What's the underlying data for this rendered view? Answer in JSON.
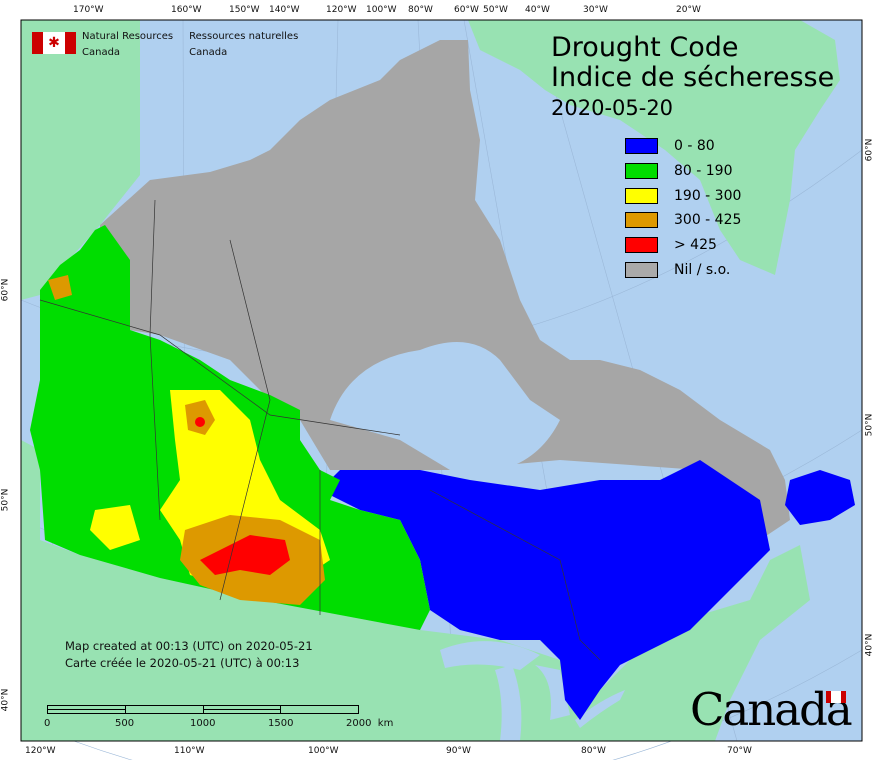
{
  "header": {
    "org_en_line1": "Natural Resources",
    "org_en_line2": "Canada",
    "org_fr_line1": "Ressources naturelles",
    "org_fr_line2": "Canada"
  },
  "title": {
    "line1": "Drought Code",
    "line2": "Indice de sécheresse",
    "date": "2020-05-20"
  },
  "legend": [
    {
      "label": "0 - 80",
      "color": "#0000ff"
    },
    {
      "label": "80 - 190",
      "color": "#00dd00"
    },
    {
      "label": "190 - 300",
      "color": "#ffff00"
    },
    {
      "label": "300 - 425",
      "color": "#dd9900"
    },
    {
      "label": "> 425",
      "color": "#ff0000"
    },
    {
      "label": "Nil / s.o.",
      "color": "#aaaaaa"
    }
  ],
  "footer": {
    "created_en": "Map created at 00:13 (UTC) on 2020-05-21",
    "created_fr": "Carte créée le 2020-05-21 (UTC) à 00:13",
    "wordmark": "Canada"
  },
  "scale_bar": {
    "labels": [
      "0",
      "500",
      "1000",
      "1500",
      "2000  km"
    ]
  },
  "axes": {
    "top": [
      "170°W",
      "160°W",
      "150°W",
      "140°W",
      "120°W",
      "100°W",
      "80°W",
      "60°W",
      "50°W",
      "40°W",
      "30°W",
      "20°W"
    ],
    "bottom": [
      "120°W",
      "110°W",
      "100°W",
      "90°W",
      "80°W",
      "70°W"
    ],
    "left": [
      "60°N",
      "50°N",
      "40°N"
    ],
    "right": [
      "60°N",
      "50°N",
      "40°N"
    ]
  },
  "colors": {
    "ocean": "#b0d0f0",
    "foreign_land": "#98e2b2",
    "frame": "#000000"
  }
}
